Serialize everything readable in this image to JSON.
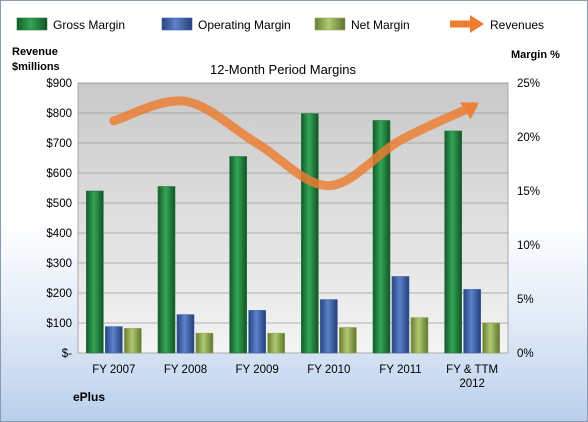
{
  "chart_data": {
    "type": "bar",
    "title": "12-Month Period Margins",
    "company": "ePlus",
    "left_axis_title": [
      "Revenue",
      "$millions"
    ],
    "right_axis_title": "Margin %",
    "categories": [
      [
        "FY 2007"
      ],
      [
        "FY 2008"
      ],
      [
        "FY 2009"
      ],
      [
        "FY 2010"
      ],
      [
        "FY 2011"
      ],
      [
        "FY & TTM",
        "2012"
      ]
    ],
    "left_ticks": [
      "$-",
      "$100",
      "$200",
      "$300",
      "$400",
      "$500",
      "$600",
      "$700",
      "$800",
      "$900"
    ],
    "right_ticks": [
      "0%",
      "5%",
      "10%",
      "15%",
      "20%",
      "25%"
    ],
    "ylim_left": [
      0,
      900
    ],
    "ylim_right": [
      0,
      25
    ],
    "grid": true,
    "legend_position": "top",
    "series": [
      {
        "name": "Gross Margin",
        "kind": "bar",
        "color": "#217a3c",
        "values": [
          540,
          555,
          655,
          798,
          775,
          740
        ]
      },
      {
        "name": "Operating Margin",
        "kind": "bar",
        "color": "#3f62a8",
        "values": [
          88,
          128,
          142,
          178,
          255,
          212
        ]
      },
      {
        "name": "Net Margin",
        "kind": "bar",
        "color": "#8fa84e",
        "values": [
          82,
          66,
          66,
          85,
          118,
          100
        ]
      },
      {
        "name": "Revenues",
        "kind": "line",
        "color": "#ed7d31",
        "values": [
          21.5,
          23.3,
          19.4,
          15.5,
          19.7,
          22.8
        ]
      }
    ]
  }
}
